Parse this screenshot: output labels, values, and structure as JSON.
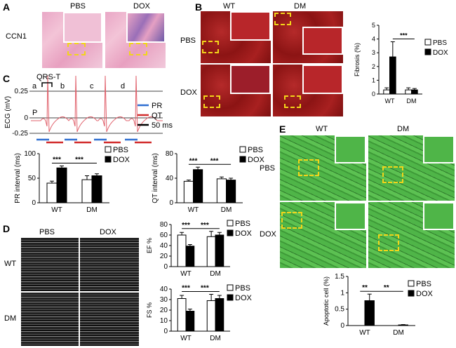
{
  "panels": {
    "a": "A",
    "b": "B",
    "c": "C",
    "d": "D",
    "e": "E"
  },
  "panel_a": {
    "row_label": "CCN1",
    "cols": [
      "PBS",
      "DOX"
    ]
  },
  "panel_b": {
    "cols": [
      "WT",
      "DM"
    ],
    "rows": [
      "PBS",
      "DOX"
    ]
  },
  "panel_c": {
    "ylabel": "ECG (mV)",
    "yticks": [
      "0.25",
      "0",
      "-0.25"
    ],
    "qrs_label": "QRS-T",
    "p_label": "P",
    "beat_labels": [
      "a",
      "b",
      "c",
      "d"
    ],
    "legend": [
      "PR",
      "QT",
      "50 ms"
    ]
  },
  "panel_d": {
    "cols": [
      "PBS",
      "DOX"
    ],
    "rows": [
      "WT",
      "DM"
    ]
  },
  "panel_e": {
    "cols": [
      "WT",
      "DM"
    ],
    "rows": [
      "PBS",
      "DOX"
    ]
  },
  "legend_series": [
    "PBS",
    "DOX"
  ],
  "colors": {
    "PBS": "#ffffff",
    "DOX": "#000000",
    "PR": "#2f6fd1",
    "QT": "#d12c2c",
    "ecg": "#e0606b"
  },
  "chart_data": [
    {
      "id": "fibrosis",
      "type": "bar",
      "categories": [
        "WT",
        "DM"
      ],
      "ylabel": "Fibrosis (%)",
      "ylim": [
        0,
        5
      ],
      "yticks": [
        0,
        1,
        2,
        3,
        4,
        5
      ],
      "series": [
        {
          "name": "PBS",
          "values": [
            0.3,
            0.3
          ],
          "err": [
            0.15,
            0.15
          ]
        },
        {
          "name": "DOX",
          "values": [
            2.7,
            0.3
          ],
          "err": [
            1.1,
            0.1
          ]
        }
      ],
      "sig": [
        {
          "label": "***",
          "from": [
            0,
            1
          ],
          "to": [
            1,
            1
          ]
        }
      ]
    },
    {
      "id": "pr",
      "type": "bar",
      "categories": [
        "WT",
        "DM"
      ],
      "ylabel": "PR interval (ms)",
      "ylim": [
        0,
        100
      ],
      "yticks": [
        0,
        50,
        100
      ],
      "series": [
        {
          "name": "PBS",
          "values": [
            40,
            47
          ],
          "err": [
            4,
            8
          ]
        },
        {
          "name": "DOX",
          "values": [
            71,
            55
          ],
          "err": [
            4,
            4
          ]
        }
      ],
      "sig": [
        {
          "label": "***",
          "from": [
            0,
            0
          ],
          "to": [
            0,
            1
          ]
        },
        {
          "label": "***",
          "from": [
            0,
            1
          ],
          "to": [
            1,
            1
          ]
        }
      ]
    },
    {
      "id": "qt",
      "type": "bar",
      "categories": [
        "WT",
        "DM"
      ],
      "ylabel": "QT interval (ms)",
      "ylim": [
        0,
        80
      ],
      "yticks": [
        0,
        40,
        80
      ],
      "series": [
        {
          "name": "PBS",
          "values": [
            35,
            39
          ],
          "err": [
            2,
            3
          ]
        },
        {
          "name": "DOX",
          "values": [
            54,
            37
          ],
          "err": [
            4,
            3
          ]
        }
      ],
      "sig": [
        {
          "label": "***",
          "from": [
            0,
            0
          ],
          "to": [
            0,
            1
          ]
        },
        {
          "label": "***",
          "from": [
            0,
            1
          ],
          "to": [
            1,
            1
          ]
        }
      ]
    },
    {
      "id": "ef",
      "type": "bar",
      "categories": [
        "WT",
        "DM"
      ],
      "ylabel": "EF %",
      "ylim": [
        0,
        80
      ],
      "yticks": [
        0,
        20,
        40,
        60,
        80
      ],
      "series": [
        {
          "name": "PBS",
          "values": [
            60,
            57
          ],
          "err": [
            5,
            10
          ]
        },
        {
          "name": "DOX",
          "values": [
            39,
            60
          ],
          "err": [
            3,
            5
          ]
        }
      ],
      "sig": [
        {
          "label": "***",
          "from": [
            0,
            0
          ],
          "to": [
            0,
            1
          ]
        },
        {
          "label": "***",
          "from": [
            0,
            1
          ],
          "to": [
            1,
            1
          ]
        }
      ]
    },
    {
      "id": "fs",
      "type": "bar",
      "categories": [
        "WT",
        "DM"
      ],
      "ylabel": "FS %",
      "ylim": [
        0,
        40
      ],
      "yticks": [
        0,
        10,
        20,
        30,
        40
      ],
      "series": [
        {
          "name": "PBS",
          "values": [
            31,
            29
          ],
          "err": [
            3,
            6
          ]
        },
        {
          "name": "DOX",
          "values": [
            19,
            31
          ],
          "err": [
            2,
            3
          ]
        }
      ],
      "sig": [
        {
          "label": "***",
          "from": [
            0,
            0
          ],
          "to": [
            0,
            1
          ]
        },
        {
          "label": "***",
          "from": [
            0,
            1
          ],
          "to": [
            1,
            1
          ]
        }
      ]
    },
    {
      "id": "apoptotic",
      "type": "bar",
      "categories": [
        "WT",
        "DM"
      ],
      "ylabel": "Apoptotic cell (%)",
      "ylim": [
        0,
        1.5
      ],
      "yticks": [
        0,
        0.5,
        1,
        1.5
      ],
      "series": [
        {
          "name": "PBS",
          "values": [
            0,
            0
          ],
          "err": [
            0,
            0
          ]
        },
        {
          "name": "DOX",
          "values": [
            0.76,
            0.02
          ],
          "err": [
            0.2,
            0.01
          ]
        }
      ],
      "sig": [
        {
          "label": "**",
          "from": [
            0,
            0
          ],
          "to": [
            0,
            1
          ]
        },
        {
          "label": "**",
          "from": [
            0,
            1
          ],
          "to": [
            1,
            1
          ]
        }
      ]
    }
  ]
}
